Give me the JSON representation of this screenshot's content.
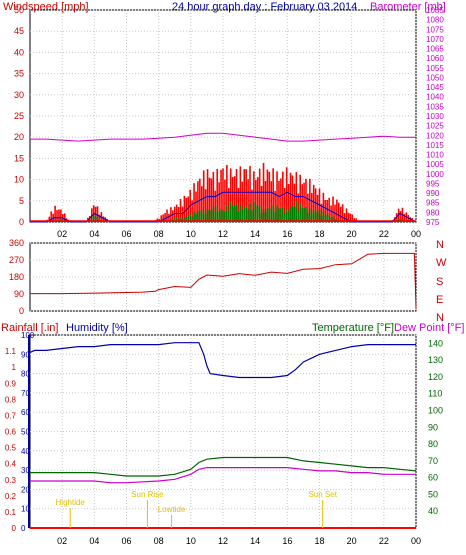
{
  "colors": {
    "wind": "#ff0000",
    "wind_avg": "#0000cc",
    "wind_low": "#008000",
    "barometer": "#cc00cc",
    "direction": "#cc0000",
    "rain": "#ff0000",
    "humidity": "#0000aa",
    "temperature": "#006600",
    "dewpoint": "#cc00cc",
    "sun": "#e0c000",
    "grid": "#c8c8c8"
  },
  "chart_data": [
    {
      "type": "line",
      "title": "24 hour graph day : February 03 2014",
      "left_axis_label": "Windspeed [mph]",
      "right_axis_label": "Barometer [mb]",
      "x_ticks": [
        "02",
        "04",
        "06",
        "08",
        "10",
        "12",
        "14",
        "16",
        "18",
        "20",
        "22",
        "00"
      ],
      "x_range": [
        0,
        24
      ],
      "left_ticks": [
        "0",
        "5",
        "10",
        "15",
        "20",
        "25",
        "30",
        "35",
        "40",
        "45",
        "50"
      ],
      "left_range": [
        0,
        50
      ],
      "right_ticks": [
        "975",
        "980",
        "985",
        "990",
        "995",
        "1000",
        "1005",
        "1010",
        "1015",
        "1020",
        "1025",
        "1030",
        "1035",
        "1040",
        "1045",
        "1050",
        "1055",
        "1060",
        "1065",
        "1070",
        "1075",
        "1080",
        "1085"
      ],
      "right_range": [
        975,
        1085
      ],
      "series": [
        {
          "key": "barometer",
          "x": [
            0,
            1,
            2,
            3,
            4,
            5,
            6,
            7,
            8,
            9,
            10,
            11,
            12,
            13,
            14,
            15,
            16,
            17,
            18,
            19,
            20,
            21,
            22,
            23,
            24
          ],
          "values": [
            1018,
            1018,
            1017.5,
            1017,
            1017.5,
            1018,
            1018,
            1018,
            1018.5,
            1019,
            1020,
            1021,
            1021,
            1020,
            1019,
            1018,
            1017,
            1017,
            1017.5,
            1018,
            1018.5,
            1019,
            1019.5,
            1019,
            1019
          ]
        },
        {
          "key": "wind_gust",
          "x": [
            0,
            1,
            1.5,
            2,
            2.5,
            3,
            3.5,
            4,
            4.5,
            5,
            5.5,
            6,
            6.5,
            7,
            7.5,
            8,
            8.5,
            9,
            9.5,
            10,
            10.5,
            11,
            11.5,
            12,
            12.5,
            13,
            13.5,
            14,
            14.5,
            15,
            15.5,
            16,
            16.5,
            17,
            17.5,
            18,
            18.5,
            19,
            19.5,
            20,
            20.5,
            21,
            21.5,
            22,
            22.5,
            23,
            23.5,
            24
          ],
          "values": [
            0,
            0,
            4,
            3,
            0,
            0,
            0,
            5,
            2,
            0,
            0,
            0,
            0,
            0,
            0,
            1,
            3,
            4,
            6,
            8,
            11,
            13,
            12,
            14,
            13,
            13,
            14,
            12,
            14,
            13,
            12,
            13,
            12,
            11,
            10,
            8,
            6,
            6,
            4,
            2,
            0,
            0,
            0,
            0,
            0,
            4,
            2,
            0
          ]
        },
        {
          "key": "wind_avg",
          "x": [
            0,
            1,
            1.5,
            2,
            2.5,
            3,
            3.5,
            4,
            4.5,
            5,
            6,
            7,
            8,
            8.5,
            9,
            9.5,
            10,
            10.5,
            11,
            11.5,
            12,
            12.5,
            13,
            13.5,
            14,
            14.5,
            15,
            15.5,
            16,
            16.5,
            17,
            17.5,
            18,
            18.5,
            19,
            19.5,
            20,
            21,
            22,
            22.5,
            23,
            23.5,
            24
          ],
          "values": [
            0,
            0,
            1,
            1,
            0,
            0,
            0,
            2,
            1,
            0,
            0,
            0,
            0,
            1,
            2,
            2,
            4,
            5,
            6,
            6,
            7,
            7,
            7,
            7,
            7,
            7,
            7,
            6,
            7,
            6,
            6,
            5,
            4,
            3,
            2,
            1,
            0,
            0,
            0,
            0,
            2,
            1,
            0
          ]
        },
        {
          "key": "wind_low",
          "x": [
            0,
            1,
            1.5,
            2,
            2.5,
            3,
            3.5,
            4,
            4.5,
            5,
            6,
            7,
            8,
            8.5,
            9,
            9.5,
            10,
            10.5,
            11,
            11.5,
            12,
            12.5,
            13,
            13.5,
            14,
            14.5,
            15,
            15.5,
            16,
            16.5,
            17,
            17.5,
            18,
            18.5,
            19,
            19.5,
            20,
            21,
            22,
            22.5,
            23,
            23.5,
            24
          ],
          "values": [
            0,
            0,
            0,
            1,
            0,
            0,
            0,
            2,
            0,
            0,
            0,
            0,
            0,
            0,
            1,
            1,
            2,
            3,
            3,
            4,
            3,
            5,
            4,
            4,
            5,
            3,
            4,
            4,
            3,
            5,
            4,
            3,
            3,
            2,
            1,
            0,
            0,
            0,
            0,
            0,
            1,
            0,
            0
          ]
        }
      ]
    },
    {
      "type": "line",
      "x_range": [
        0,
        24
      ],
      "left_ticks": [
        "0",
        "90",
        "180",
        "270",
        "360"
      ],
      "left_range": [
        0,
        360
      ],
      "right_ticks": [
        "N",
        "W",
        "S",
        "E",
        "N"
      ],
      "series": [
        {
          "key": "direction",
          "x": [
            0,
            2,
            4,
            6,
            7,
            7.8,
            8,
            9,
            10,
            10.5,
            11,
            12,
            13,
            14,
            15,
            16,
            17,
            18,
            19,
            20,
            21,
            22,
            23,
            23.5,
            23.9,
            24
          ],
          "values": [
            92,
            92,
            95,
            98,
            100,
            105,
            118,
            125,
            130,
            165,
            185,
            190,
            192,
            195,
            200,
            205,
            215,
            230,
            240,
            255,
            300,
            305,
            305,
            305,
            305,
            10
          ]
        }
      ]
    },
    {
      "type": "line",
      "left_axis_label_1": "Rainfall [.in]",
      "left_axis_label_2": "Humidity [%]",
      "right_axis_label_1": "Temperature [°F]",
      "right_axis_label_2": "Dew Point [°F]",
      "x_ticks": [
        "02",
        "04",
        "06",
        "08",
        "10",
        "12",
        "14",
        "16",
        "18",
        "20",
        "22",
        "00"
      ],
      "x_range": [
        0,
        24
      ],
      "rain_ticks": [
        "0",
        "0.1",
        "0.2",
        "0.3",
        "0.4",
        "0.5",
        "0.6",
        "0.7",
        "0.8",
        "0.9",
        "1",
        "1.1"
      ],
      "rain_range": [
        0,
        1.2
      ],
      "humidity_ticks": [
        "0",
        "10",
        "20",
        "30",
        "40",
        "50",
        "60",
        "70",
        "80",
        "90",
        "100"
      ],
      "humidity_range": [
        0,
        100
      ],
      "temp_ticks": [
        "40",
        "50",
        "60",
        "70",
        "80",
        "90",
        "100",
        "110",
        "120",
        "130",
        "140"
      ],
      "temp_range": [
        30,
        145
      ],
      "annotations": [
        {
          "text": "Sun Rise",
          "x": 7.3
        },
        {
          "text": "Sun Set",
          "x": 18.2
        },
        {
          "text": "Lowtide",
          "x": 8.8
        },
        {
          "text": "Hightide",
          "x": 2.5
        }
      ],
      "series": [
        {
          "key": "humidity",
          "x": [
            0,
            0.3,
            1,
            2,
            3,
            4,
            5,
            6,
            7,
            8,
            9,
            10,
            10.5,
            10.8,
            11,
            11.2,
            12,
            13,
            14,
            15,
            16,
            16.5,
            17,
            18,
            19,
            20,
            21,
            22,
            23,
            24
          ],
          "values": [
            91,
            92,
            92,
            93,
            94,
            94,
            95,
            95,
            95,
            95,
            96,
            96,
            96,
            90,
            84,
            80,
            79,
            78,
            78,
            78,
            79,
            82,
            86,
            90,
            92,
            94,
            95,
            95,
            95,
            95
          ]
        },
        {
          "key": "temperature",
          "x": [
            0,
            2,
            4,
            5,
            6,
            8,
            9,
            10,
            10.5,
            11,
            12,
            13,
            14,
            15,
            16,
            17,
            18,
            19,
            20,
            21,
            22,
            23,
            24
          ],
          "values": [
            63,
            63,
            63,
            62,
            61,
            61,
            62,
            65,
            69,
            71,
            72,
            72,
            72,
            72,
            72,
            70,
            69,
            68,
            67,
            66,
            66,
            65,
            64
          ]
        },
        {
          "key": "dewpoint",
          "x": [
            0,
            2,
            4,
            5,
            6,
            8,
            9,
            10,
            10.5,
            11,
            12,
            13,
            14,
            15,
            16,
            17,
            18,
            19,
            20,
            21,
            22,
            23,
            24
          ],
          "values": [
            58,
            58,
            58,
            57,
            57,
            58,
            59,
            62,
            65,
            66,
            66,
            66,
            66,
            66,
            66,
            65,
            64,
            64,
            63,
            63,
            62,
            62,
            62
          ]
        },
        {
          "key": "rain",
          "x": [
            0,
            24
          ],
          "values": [
            0,
            0
          ]
        }
      ]
    }
  ]
}
